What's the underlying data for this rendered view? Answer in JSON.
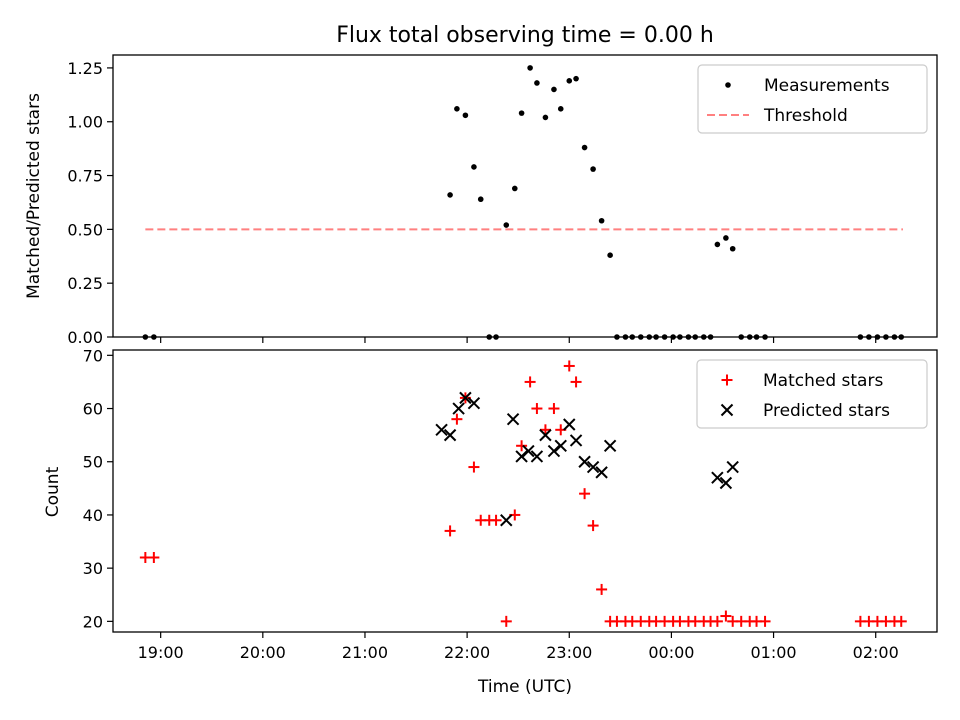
{
  "title": "Flux total observing time = 0.00 h",
  "chart_data": [
    {
      "type": "scatter",
      "ylabel": "Matched/Predicted stars",
      "xlabel": "",
      "ylim": [
        0,
        1.31
      ],
      "xlim": [
        "18:32",
        "02:36"
      ],
      "y_ticks": [
        0.0,
        0.25,
        0.5,
        0.75,
        1.0,
        1.25
      ],
      "y_tick_labels": [
        "0.00",
        "0.25",
        "0.50",
        "0.75",
        "1.00",
        "1.25"
      ],
      "grid": false,
      "legend_position": "top-right",
      "legend": [
        {
          "label": "Measurements",
          "marker": "dot",
          "color": "#000000"
        },
        {
          "label": "Threshold",
          "marker": "dashed-line",
          "color": "#ff8080"
        }
      ],
      "threshold": {
        "value": 0.5,
        "x_start": "18:51",
        "x_end": "02:16",
        "color": "#ff8080"
      },
      "series": [
        {
          "name": "Measurements",
          "color": "#000000",
          "points": [
            [
              "18:51",
              0.0
            ],
            [
              "18:56",
              0.0
            ],
            [
              "21:50",
              0.66
            ],
            [
              "21:54",
              1.06
            ],
            [
              "21:59",
              1.03
            ],
            [
              "22:04",
              0.79
            ],
            [
              "22:08",
              0.64
            ],
            [
              "22:13",
              0.0
            ],
            [
              "22:17",
              0.0
            ],
            [
              "22:23",
              0.52
            ],
            [
              "22:28",
              0.69
            ],
            [
              "22:32",
              1.04
            ],
            [
              "22:37",
              1.25
            ],
            [
              "22:41",
              1.18
            ],
            [
              "22:46",
              1.02
            ],
            [
              "22:51",
              1.15
            ],
            [
              "22:55",
              1.06
            ],
            [
              "23:00",
              1.19
            ],
            [
              "23:04",
              1.2
            ],
            [
              "23:09",
              0.88
            ],
            [
              "23:14",
              0.78
            ],
            [
              "23:19",
              0.54
            ],
            [
              "23:24",
              0.38
            ],
            [
              "23:28",
              0.0
            ],
            [
              "23:33",
              0.0
            ],
            [
              "23:37",
              0.0
            ],
            [
              "23:42",
              0.0
            ],
            [
              "23:47",
              0.0
            ],
            [
              "23:51",
              0.0
            ],
            [
              "23:56",
              0.0
            ],
            [
              "00:01",
              0.0
            ],
            [
              "00:05",
              0.0
            ],
            [
              "00:10",
              0.0
            ],
            [
              "00:14",
              0.0
            ],
            [
              "00:19",
              0.0
            ],
            [
              "00:23",
              0.0
            ],
            [
              "00:27",
              0.43
            ],
            [
              "00:32",
              0.46
            ],
            [
              "00:36",
              0.41
            ],
            [
              "00:41",
              0.0
            ],
            [
              "00:46",
              0.0
            ],
            [
              "00:50",
              0.0
            ],
            [
              "00:55",
              0.0
            ],
            [
              "01:51",
              0.0
            ],
            [
              "01:56",
              0.0
            ],
            [
              "02:01",
              0.0
            ],
            [
              "02:06",
              0.0
            ],
            [
              "02:11",
              0.0
            ],
            [
              "02:15",
              0.0
            ]
          ]
        }
      ]
    },
    {
      "type": "scatter",
      "ylabel": "Count",
      "xlabel": "Time (UTC)",
      "ylim": [
        18,
        71
      ],
      "xlim": [
        "18:32",
        "02:36"
      ],
      "y_ticks": [
        20,
        30,
        40,
        50,
        60,
        70
      ],
      "x_ticks": [
        "19:00",
        "20:00",
        "21:00",
        "22:00",
        "23:00",
        "00:00",
        "01:00",
        "02:00"
      ],
      "grid": false,
      "legend_position": "top-right",
      "legend": [
        {
          "label": "Matched stars",
          "marker": "plus",
          "color": "#ff0000"
        },
        {
          "label": "Predicted stars",
          "marker": "x",
          "color": "#000000"
        }
      ],
      "series": [
        {
          "name": "Matched stars",
          "color": "#ff0000",
          "marker": "plus",
          "points": [
            [
              "18:51",
              32
            ],
            [
              "18:56",
              32
            ],
            [
              "21:50",
              37
            ],
            [
              "21:54",
              58
            ],
            [
              "21:59",
              62
            ],
            [
              "22:04",
              49
            ],
            [
              "22:08",
              39
            ],
            [
              "22:13",
              39
            ],
            [
              "22:17",
              39
            ],
            [
              "22:23",
              20
            ],
            [
              "22:28",
              40
            ],
            [
              "22:32",
              53
            ],
            [
              "22:37",
              65
            ],
            [
              "22:41",
              60
            ],
            [
              "22:46",
              56
            ],
            [
              "22:51",
              60
            ],
            [
              "22:55",
              56
            ],
            [
              "23:00",
              68
            ],
            [
              "23:04",
              65
            ],
            [
              "23:09",
              44
            ],
            [
              "23:14",
              38
            ],
            [
              "23:19",
              26
            ],
            [
              "23:24",
              20
            ],
            [
              "23:28",
              20
            ],
            [
              "23:33",
              20
            ],
            [
              "23:37",
              20
            ],
            [
              "23:42",
              20
            ],
            [
              "23:47",
              20
            ],
            [
              "23:51",
              20
            ],
            [
              "23:56",
              20
            ],
            [
              "00:01",
              20
            ],
            [
              "00:05",
              20
            ],
            [
              "00:10",
              20
            ],
            [
              "00:14",
              20
            ],
            [
              "00:19",
              20
            ],
            [
              "00:23",
              20
            ],
            [
              "00:27",
              20
            ],
            [
              "00:32",
              21
            ],
            [
              "00:36",
              20
            ],
            [
              "00:41",
              20
            ],
            [
              "00:46",
              20
            ],
            [
              "00:50",
              20
            ],
            [
              "00:55",
              20
            ],
            [
              "01:51",
              20
            ],
            [
              "01:56",
              20
            ],
            [
              "02:01",
              20
            ],
            [
              "02:06",
              20
            ],
            [
              "02:11",
              20
            ],
            [
              "02:15",
              20
            ]
          ]
        },
        {
          "name": "Predicted stars",
          "color": "#000000",
          "marker": "x",
          "points": [
            [
              "21:45",
              56
            ],
            [
              "21:50",
              55
            ],
            [
              "21:55",
              60
            ],
            [
              "21:59",
              62
            ],
            [
              "22:04",
              61
            ],
            [
              "22:23",
              39
            ],
            [
              "22:27",
              58
            ],
            [
              "22:32",
              51
            ],
            [
              "22:36",
              52
            ],
            [
              "22:41",
              51
            ],
            [
              "22:46",
              55
            ],
            [
              "22:51",
              52
            ],
            [
              "22:55",
              53
            ],
            [
              "23:00",
              57
            ],
            [
              "23:04",
              54
            ],
            [
              "23:09",
              50
            ],
            [
              "23:14",
              49
            ],
            [
              "23:19",
              48
            ],
            [
              "23:24",
              53
            ],
            [
              "00:27",
              47
            ],
            [
              "00:32",
              46
            ],
            [
              "00:36",
              49
            ]
          ]
        }
      ]
    }
  ]
}
